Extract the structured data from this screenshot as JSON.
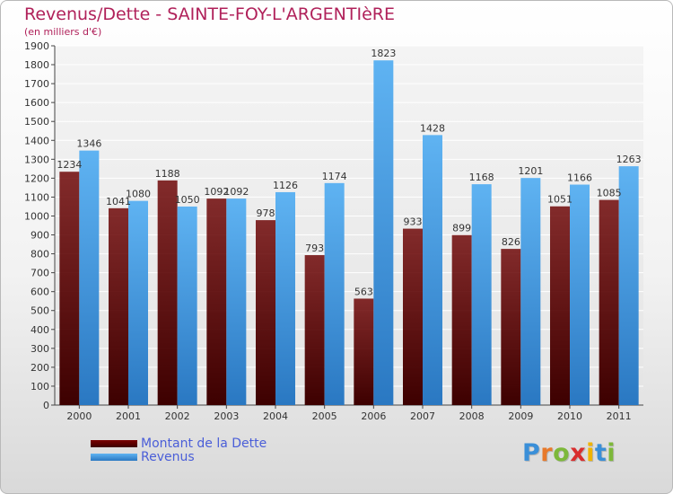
{
  "title": "Revenus/Dette - SAINTE-FOY-L'ARGENTIèRE",
  "subtitle": "(en milliers d'€)",
  "chart_data": {
    "type": "bar",
    "categories": [
      "2000",
      "2001",
      "2002",
      "2003",
      "2004",
      "2005",
      "2006",
      "2007",
      "2008",
      "2009",
      "2010",
      "2011"
    ],
    "series": [
      {
        "name": "Montant de la Dette",
        "color": "#6b0000",
        "values": [
          1234,
          1041,
          1188,
          1092,
          978,
          793,
          563,
          933,
          899,
          826,
          1051,
          1085
        ],
        "labels": [
          "1234",
          "1041",
          "1188",
          "1092",
          "978",
          "793",
          "563",
          "933",
          "899",
          "826",
          "1051",
          "1085"
        ]
      },
      {
        "name": "Revenus",
        "color": "#3399e6",
        "values": [
          1346,
          1080,
          1050,
          1092,
          1126,
          1174,
          1823,
          1428,
          1168,
          1201,
          1166,
          1263
        ],
        "labels": [
          "1346",
          "1080",
          "1050",
          "1092",
          "1126",
          "1174",
          "1823",
          "1428",
          "1168",
          "1201",
          "1166",
          "1263"
        ]
      }
    ],
    "yticks": [
      "0",
      "100",
      "200",
      "300",
      "400",
      "500",
      "600",
      "700",
      "800",
      "900",
      "1000",
      "1100",
      "1200",
      "1300",
      "1400",
      "1500",
      "1600",
      "1700",
      "1800",
      "1900"
    ],
    "ylim": [
      0,
      1900
    ],
    "grid": true,
    "legend": "bottom-left"
  },
  "legend": {
    "items": [
      {
        "label": "Montant de la Dette",
        "color": "#6b0000"
      },
      {
        "label": "Revenus",
        "color": "#3399e6"
      }
    ]
  },
  "logo": {
    "letters": [
      "P",
      "r",
      "o",
      "x",
      "i",
      "t",
      "i"
    ],
    "colors": [
      "#3a8fd8",
      "#e8792a",
      "#7db83a",
      "#d92e2e",
      "#f0b400",
      "#3a8fd8",
      "#7db83a"
    ]
  }
}
